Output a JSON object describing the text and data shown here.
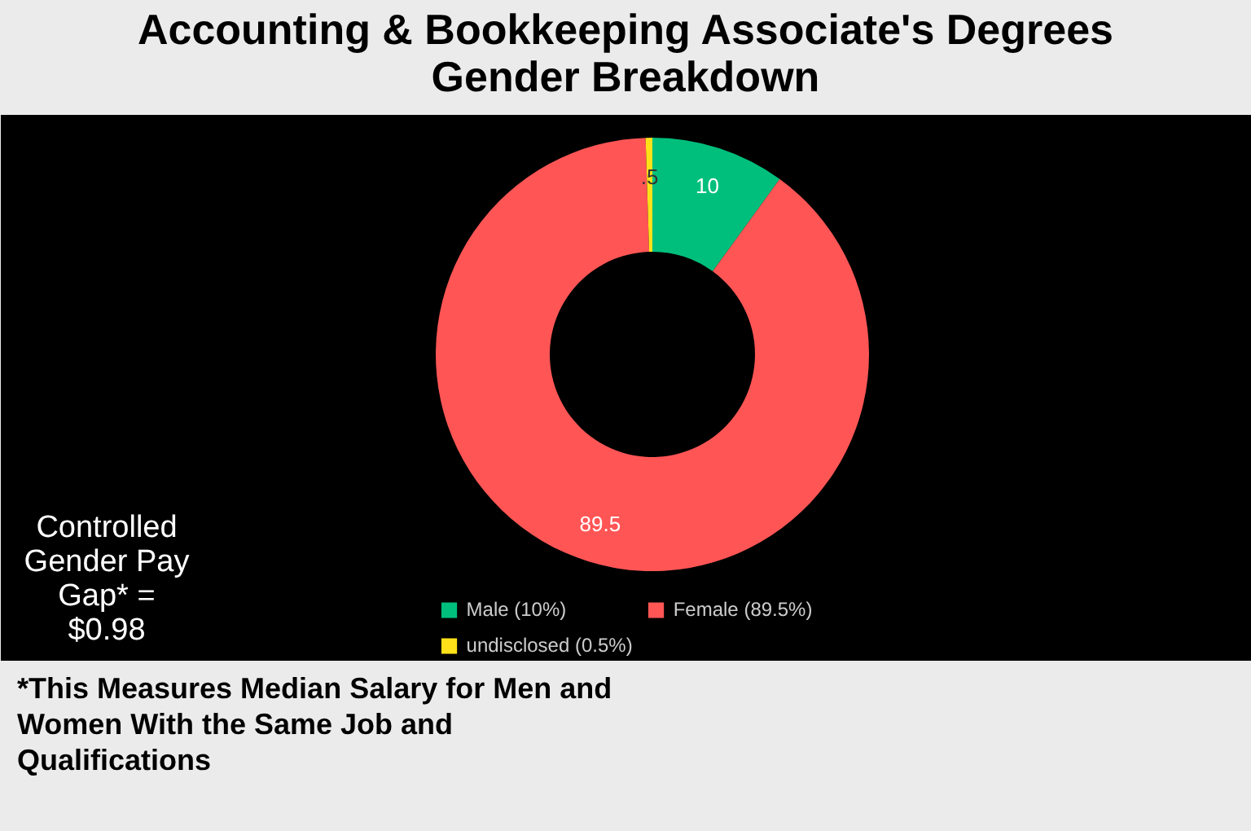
{
  "chart_data": {
    "type": "donut",
    "title": "Accounting & Bookkeeping Associate's Degrees Gender Breakdown",
    "categories": [
      "Male (10%)",
      "Female (89.5%)",
      "undisclosed (0.5%)"
    ],
    "values": [
      10,
      89.5,
      0.5
    ],
    "colors": [
      "#00bf7d",
      "#ff5555",
      "#ffe119"
    ],
    "value_labels": [
      "10",
      "89.5",
      ".5"
    ],
    "legend": "bottom",
    "annotations": [
      "Controlled Gender Pay Gap* = $0.98",
      "*This Measures Median Salary for Men and Women With the Same Job and Qualifications"
    ]
  }
}
